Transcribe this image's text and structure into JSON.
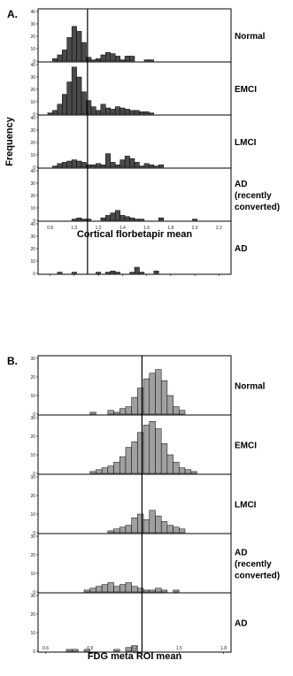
{
  "chart_data": [
    {
      "type": "bar",
      "panel_tag": "A.",
      "ylabel": "Frequency",
      "xlabel": "Cortical florbetapir mean",
      "xlim": [
        0.7,
        2.3
      ],
      "x_ticks": [
        "0.8",
        "1.0",
        "1.2",
        "1.4",
        "1.6",
        "1.8",
        "2.0",
        "2.2"
      ],
      "ylim": [
        0,
        40
      ],
      "y_ticks": [
        "0",
        "10",
        "20",
        "30",
        "40"
      ],
      "bin_width": 0.04,
      "reference_x": 1.11,
      "bar_color": "#4a4a4a",
      "bin_starts": [
        0.78,
        0.82,
        0.86,
        0.9,
        0.94,
        0.98,
        1.02,
        1.06,
        1.1,
        1.14,
        1.18,
        1.22,
        1.26,
        1.3,
        1.34,
        1.38,
        1.42,
        1.46,
        1.5,
        1.54,
        1.58,
        1.62,
        1.66,
        1.7,
        1.74,
        1.78,
        1.82,
        1.86,
        1.9,
        1.94,
        1.98,
        2.02
      ],
      "series": [
        {
          "name": "Normal",
          "values": [
            0,
            2,
            5,
            9,
            19,
            28,
            24,
            15,
            3,
            1,
            2,
            5,
            7,
            6,
            4,
            1,
            4,
            4,
            0,
            0,
            1,
            1,
            0,
            0,
            0,
            0,
            0,
            0,
            0,
            0,
            0,
            0
          ]
        },
        {
          "name": "EMCI",
          "values": [
            1,
            3,
            8,
            16,
            26,
            38,
            30,
            18,
            11,
            6,
            3,
            8,
            5,
            4,
            6,
            5,
            4,
            3,
            3,
            2,
            2,
            1,
            0,
            0,
            0,
            0,
            0,
            0,
            0,
            0,
            0,
            0
          ]
        },
        {
          "name": "LMCI",
          "values": [
            0,
            1,
            3,
            4,
            5,
            6,
            5,
            4,
            2,
            2,
            3,
            2,
            11,
            4,
            2,
            6,
            9,
            7,
            4,
            1,
            3,
            2,
            1,
            2,
            0,
            0,
            0,
            0,
            0,
            0,
            0,
            0
          ]
        },
        {
          "name": "AD\n(recently\nconverted)",
          "values": [
            0,
            0,
            0,
            0,
            0,
            1,
            2,
            1,
            1,
            0,
            0,
            2,
            4,
            6,
            8,
            4,
            3,
            2,
            1,
            1,
            0,
            0,
            0,
            2,
            0,
            0,
            0,
            0,
            0,
            0,
            1,
            0
          ]
        },
        {
          "name": "AD",
          "values": [
            0,
            0,
            1,
            0,
            0,
            1,
            0,
            0,
            0,
            0,
            1,
            0,
            1,
            2,
            1,
            0,
            0,
            1,
            5,
            1,
            0,
            0,
            2,
            0,
            0,
            0,
            0,
            0,
            0,
            0,
            0,
            0
          ]
        }
      ]
    },
    {
      "type": "bar",
      "panel_tag": "B.",
      "xlabel": "FDG meta ROI mean",
      "xlim": [
        0.55,
        1.85
      ],
      "x_ticks": [
        "0.6",
        "0.9",
        "1.2",
        "1.5",
        "1.8"
      ],
      "ylim": [
        0,
        30
      ],
      "y_ticks": [
        "0",
        "10",
        "20",
        "30"
      ],
      "bin_width": 0.04,
      "reference_x": 1.25,
      "bar_color": "#a0a0a0",
      "bin_starts": [
        0.7,
        0.74,
        0.78,
        0.82,
        0.86,
        0.9,
        0.94,
        0.98,
        1.02,
        1.06,
        1.1,
        1.14,
        1.18,
        1.22,
        1.26,
        1.3,
        1.34,
        1.38,
        1.42,
        1.46,
        1.5,
        1.54,
        1.58,
        1.62,
        1.66
      ],
      "series": [
        {
          "name": "Normal",
          "values": [
            0,
            0,
            0,
            0,
            0,
            1,
            0,
            0,
            2,
            1,
            3,
            4,
            9,
            14,
            19,
            22,
            24,
            18,
            10,
            4,
            2,
            0,
            0,
            0,
            0
          ]
        },
        {
          "name": "EMCI",
          "values": [
            0,
            0,
            0,
            0,
            0,
            1,
            2,
            3,
            4,
            6,
            9,
            14,
            17,
            22,
            26,
            28,
            24,
            16,
            10,
            6,
            3,
            2,
            1,
            0,
            0
          ]
        },
        {
          "name": "LMCI",
          "values": [
            0,
            0,
            0,
            0,
            0,
            0,
            0,
            0,
            1,
            2,
            3,
            4,
            8,
            10,
            7,
            12,
            9,
            6,
            4,
            3,
            2,
            0,
            0,
            0,
            0
          ]
        },
        {
          "name": "AD\n(recently\nconverted)",
          "values": [
            0,
            0,
            0,
            0,
            1,
            2,
            3,
            4,
            5,
            3,
            4,
            5,
            3,
            2,
            1,
            1,
            2,
            1,
            0,
            1,
            0,
            0,
            0,
            0,
            0
          ]
        },
        {
          "name": "AD",
          "values": [
            0,
            1,
            1,
            0,
            1,
            0,
            0,
            0,
            0,
            1,
            0,
            2,
            3,
            0,
            0,
            0,
            0,
            0,
            0,
            0,
            0,
            0,
            0,
            0,
            0
          ]
        }
      ]
    }
  ]
}
